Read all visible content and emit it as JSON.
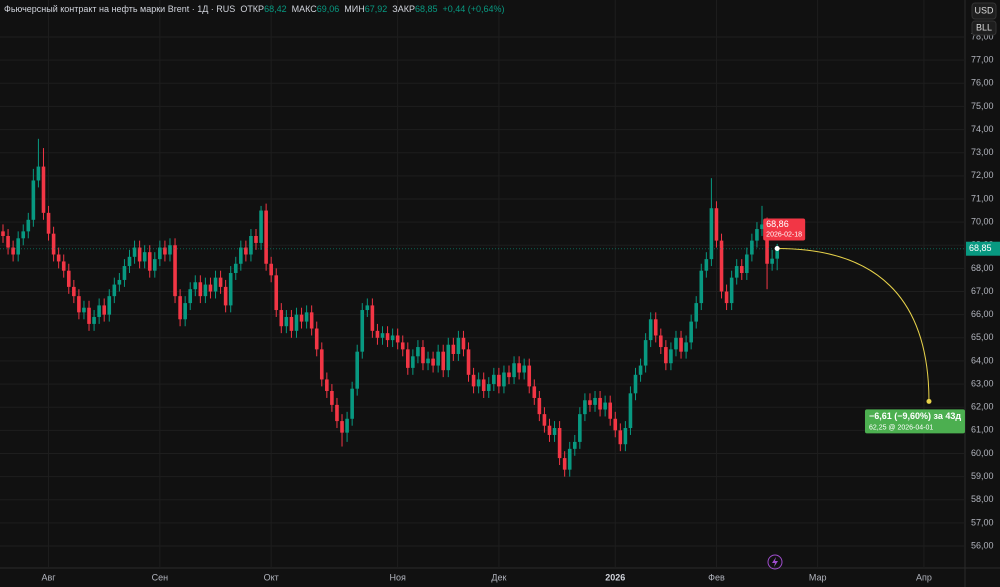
{
  "chart_data": {
    "type": "candlestick",
    "header": {
      "title": "Фьючерсный контракт на нефть марки Brent · 1Д · RUS",
      "stats": [
        {
          "label": "ОТКР",
          "value": "68,42"
        },
        {
          "label": "МАКС",
          "value": "69,06"
        },
        {
          "label": "МИН",
          "value": "67,92"
        },
        {
          "label": "ЗАКР",
          "value": "68,85"
        }
      ],
      "change": "+0,44 (+0,64%)"
    },
    "currency": "USD",
    "unit": "BLL",
    "up_color": "#089981",
    "down_color": "#f23645",
    "grid": true,
    "ylim": [
      55.05,
      79.6
    ],
    "yticks": [
      {
        "value": 56,
        "label": "56,00"
      },
      {
        "value": 57,
        "label": "57,00"
      },
      {
        "value": 58,
        "label": "58,00"
      },
      {
        "value": 59,
        "label": "59,00"
      },
      {
        "value": 60,
        "label": "60,00"
      },
      {
        "value": 61,
        "label": "61,00"
      },
      {
        "value": 62,
        "label": "62,00"
      },
      {
        "value": 63,
        "label": "63,00"
      },
      {
        "value": 64,
        "label": "64,00"
      },
      {
        "value": 65,
        "label": "65,00"
      },
      {
        "value": 66,
        "label": "66,00"
      },
      {
        "value": 67,
        "label": "67,00"
      },
      {
        "value": 68,
        "label": "68,00"
      },
      {
        "value": 69,
        "label": "69,00"
      },
      {
        "value": 70,
        "label": "70,00"
      },
      {
        "value": 71,
        "label": "71,00"
      },
      {
        "value": 72,
        "label": "72,00"
      },
      {
        "value": 73,
        "label": "73,00"
      },
      {
        "value": 74,
        "label": "74,00"
      },
      {
        "value": 75,
        "label": "75,00"
      },
      {
        "value": 76,
        "label": "76,00"
      },
      {
        "value": 77,
        "label": "77,00"
      },
      {
        "value": 78,
        "label": "78,00"
      }
    ],
    "categories": [
      null,
      null,
      null,
      null,
      null,
      null,
      null,
      null,
      null,
      "Авг",
      null,
      null,
      null,
      null,
      null,
      null,
      null,
      null,
      null,
      null,
      null,
      null,
      null,
      null,
      null,
      null,
      null,
      null,
      null,
      null,
      null,
      "Сен",
      null,
      null,
      null,
      null,
      null,
      null,
      null,
      null,
      null,
      null,
      null,
      null,
      null,
      null,
      null,
      null,
      null,
      null,
      null,
      null,
      null,
      "Окт",
      null,
      null,
      null,
      null,
      null,
      null,
      null,
      null,
      null,
      null,
      null,
      null,
      null,
      null,
      null,
      null,
      null,
      null,
      null,
      null,
      null,
      null,
      null,
      null,
      "Ноя",
      null,
      null,
      null,
      null,
      null,
      null,
      null,
      null,
      null,
      null,
      null,
      null,
      null,
      null,
      null,
      null,
      null,
      null,
      null,
      "Дек",
      null,
      null,
      null,
      null,
      null,
      null,
      null,
      null,
      null,
      null,
      null,
      null,
      null,
      null,
      null,
      null,
      null,
      null,
      null,
      null,
      null,
      null,
      "2026",
      null,
      null,
      null,
      null,
      null,
      null,
      null,
      null,
      null,
      null,
      null,
      null,
      null,
      null,
      null,
      null,
      null,
      null,
      null,
      "Фев",
      null,
      null,
      null,
      null,
      null,
      null,
      null,
      null,
      null,
      null,
      null,
      null,
      null,
      null,
      null,
      null,
      null,
      null,
      null,
      "Мар",
      null,
      null,
      null,
      null,
      null,
      null,
      null,
      null,
      null,
      null,
      null,
      null,
      null,
      null,
      null,
      null,
      null,
      null,
      null,
      null,
      "Апр",
      null,
      null,
      null,
      null,
      null,
      null,
      null,
      null
    ],
    "open": [
      69.6,
      69.4,
      68.9,
      68.6,
      69.3,
      69.6,
      70.1,
      71.8,
      72.4,
      70.4,
      69.5,
      68.6,
      68.3,
      67.9,
      67.2,
      66.8,
      66.1,
      66.3,
      65.6,
      65.9,
      66.4,
      66.0,
      66.8,
      67.3,
      67.5,
      68.1,
      68.5,
      68.9,
      68.3,
      68.7,
      67.9,
      68.4,
      68.9,
      68.6,
      69.0,
      66.8,
      65.8,
      66.5,
      67.1,
      67.4,
      66.8,
      67.3,
      67.0,
      67.6,
      67.2,
      66.4,
      67.8,
      68.2,
      68.9,
      68.6,
      69.4,
      69.1,
      70.5,
      68.2,
      67.7,
      66.2,
      65.5,
      65.9,
      65.3,
      66.0,
      65.7,
      66.1,
      65.4,
      64.5,
      63.2,
      62.7,
      62.1,
      61.4,
      60.9,
      61.5,
      62.8,
      64.4,
      66.2,
      66.4,
      65.3,
      65.0,
      65.2,
      64.9,
      65.1,
      64.8,
      64.5,
      63.7,
      64.2,
      64.6,
      63.9,
      64.1,
      63.8,
      64.4,
      63.6,
      64.7,
      64.3,
      65.0,
      64.5,
      63.4,
      62.9,
      63.2,
      62.7,
      63.0,
      63.4,
      62.9,
      63.5,
      63.3,
      63.9,
      63.5,
      63.8,
      62.9,
      62.4,
      61.7,
      61.2,
      60.8,
      61.1,
      59.8,
      59.3,
      60.2,
      60.5,
      61.7,
      62.3,
      62.1,
      62.4,
      61.9,
      62.2,
      61.5,
      61.0,
      60.4,
      61.1,
      62.6,
      63.4,
      63.8,
      64.9,
      65.8,
      65.1,
      64.6,
      63.9,
      64.5,
      65.0,
      64.4,
      64.8,
      65.7,
      66.5,
      67.9,
      68.4,
      70.6,
      69.2,
      67.0,
      66.5,
      67.6,
      68.1,
      67.8,
      68.6,
      69.2,
      69.7,
      69.9,
      68.2,
      68.42,
      null,
      null,
      null,
      null,
      null,
      null,
      null,
      null,
      null,
      null,
      null,
      null,
      null,
      null,
      null,
      null,
      null,
      null,
      null,
      null,
      null,
      null,
      null,
      null,
      null,
      null,
      null,
      null,
      null,
      null,
      null,
      null,
      null,
      null,
      null,
      null,
      null
    ],
    "high": [
      69.9,
      69.7,
      69.2,
      69.6,
      69.9,
      70.4,
      72.3,
      73.6,
      73.2,
      70.7,
      69.8,
      68.9,
      68.6,
      68.2,
      67.5,
      67.1,
      66.6,
      66.6,
      66.2,
      66.7,
      66.7,
      67.1,
      67.6,
      67.8,
      68.4,
      68.8,
      69.2,
      69.2,
      69.0,
      69.0,
      68.7,
      69.2,
      69.2,
      69.3,
      69.3,
      67.1,
      66.8,
      67.4,
      67.7,
      67.7,
      67.6,
      67.6,
      67.9,
      67.9,
      67.5,
      68.1,
      68.5,
      69.2,
      69.2,
      69.7,
      69.7,
      70.7,
      70.8,
      68.5,
      68.0,
      66.5,
      66.2,
      66.2,
      66.3,
      66.3,
      66.4,
      66.4,
      65.7,
      64.8,
      63.5,
      63.0,
      62.4,
      61.7,
      61.8,
      63.1,
      64.7,
      66.5,
      66.7,
      66.7,
      65.6,
      65.5,
      65.5,
      65.4,
      65.4,
      65.1,
      64.8,
      64.5,
      64.9,
      64.9,
      64.4,
      64.4,
      64.7,
      64.7,
      65.0,
      65.0,
      65.3,
      65.3,
      64.8,
      63.7,
      63.5,
      63.5,
      63.3,
      63.7,
      63.7,
      63.8,
      63.8,
      64.2,
      64.2,
      64.1,
      64.1,
      63.2,
      62.7,
      62.0,
      61.5,
      61.4,
      61.4,
      60.1,
      60.5,
      60.8,
      62.0,
      62.6,
      62.6,
      62.7,
      62.7,
      62.5,
      62.5,
      61.8,
      61.3,
      61.4,
      62.9,
      63.7,
      64.1,
      65.2,
      66.1,
      66.1,
      65.4,
      64.9,
      64.8,
      65.3,
      65.3,
      65.1,
      66.0,
      66.8,
      68.2,
      68.7,
      71.9,
      70.9,
      69.5,
      67.3,
      67.9,
      68.4,
      68.4,
      68.9,
      69.5,
      70.0,
      70.7,
      70.2,
      68.8,
      69.06,
      null,
      null,
      null,
      null,
      null,
      null,
      null,
      null,
      null,
      null,
      null,
      null,
      null,
      null,
      null,
      null,
      null,
      null,
      null,
      null,
      null,
      null,
      null,
      null,
      null,
      null,
      null,
      null,
      null,
      null,
      null,
      null,
      null,
      null,
      null,
      null,
      null
    ],
    "low": [
      69.1,
      68.6,
      68.3,
      68.3,
      69.0,
      69.3,
      69.8,
      71.5,
      70.1,
      69.2,
      68.3,
      68.0,
      67.6,
      66.9,
      66.5,
      65.8,
      65.8,
      65.3,
      65.3,
      65.6,
      65.7,
      65.7,
      66.5,
      67.0,
      67.2,
      67.8,
      68.2,
      68.0,
      68.0,
      67.6,
      67.6,
      68.1,
      68.3,
      68.3,
      66.5,
      65.5,
      65.5,
      66.2,
      66.8,
      66.5,
      66.5,
      66.7,
      66.7,
      66.9,
      66.1,
      66.1,
      67.5,
      67.9,
      68.3,
      68.3,
      68.8,
      68.8,
      67.9,
      67.4,
      65.9,
      65.2,
      65.2,
      65.0,
      65.0,
      65.4,
      65.4,
      65.1,
      64.2,
      62.9,
      62.4,
      61.8,
      61.1,
      60.3,
      60.5,
      61.2,
      62.5,
      64.1,
      65.9,
      65.0,
      64.7,
      64.7,
      64.6,
      64.6,
      64.5,
      64.2,
      63.4,
      63.4,
      63.9,
      63.6,
      63.6,
      63.5,
      63.5,
      63.3,
      63.3,
      64.0,
      64.0,
      64.2,
      63.1,
      62.6,
      62.6,
      62.4,
      62.4,
      62.7,
      62.6,
      62.6,
      63.0,
      63.0,
      63.2,
      63.2,
      62.6,
      62.1,
      61.4,
      60.9,
      60.5,
      60.5,
      59.5,
      59.0,
      59.0,
      59.9,
      60.2,
      61.4,
      61.8,
      61.8,
      61.6,
      61.6,
      61.2,
      60.7,
      60.1,
      60.1,
      60.8,
      62.3,
      63.1,
      63.5,
      64.6,
      64.8,
      64.3,
      63.6,
      63.6,
      64.2,
      64.1,
      64.1,
      64.5,
      65.4,
      66.2,
      67.6,
      68.1,
      68.9,
      66.7,
      66.2,
      66.2,
      67.3,
      67.5,
      67.5,
      68.3,
      68.9,
      69.4,
      67.1,
      67.9,
      67.92,
      null,
      null,
      null,
      null,
      null,
      null,
      null,
      null,
      null,
      null,
      null,
      null,
      null,
      null,
      null,
      null,
      null,
      null,
      null,
      null,
      null,
      null,
      null,
      null,
      null,
      null,
      null,
      null,
      null,
      null,
      null,
      null,
      null,
      null,
      null,
      null,
      null
    ],
    "close": [
      69.4,
      68.9,
      68.6,
      69.3,
      69.6,
      70.1,
      71.8,
      72.4,
      70.4,
      69.5,
      68.6,
      68.3,
      67.9,
      67.2,
      66.8,
      66.1,
      66.3,
      65.6,
      65.9,
      66.4,
      66.0,
      66.8,
      67.3,
      67.5,
      68.1,
      68.5,
      68.9,
      68.3,
      68.7,
      67.9,
      68.4,
      68.9,
      68.6,
      69.0,
      66.8,
      65.8,
      66.5,
      67.1,
      67.4,
      66.8,
      67.3,
      67.0,
      67.6,
      67.2,
      66.4,
      67.8,
      68.2,
      68.9,
      68.6,
      69.4,
      69.1,
      70.5,
      68.2,
      67.7,
      66.2,
      65.5,
      65.9,
      65.3,
      66.0,
      65.7,
      66.1,
      65.4,
      64.5,
      63.2,
      62.7,
      62.1,
      61.4,
      60.9,
      61.5,
      62.8,
      64.4,
      66.2,
      66.4,
      65.3,
      65.0,
      65.2,
      64.9,
      65.1,
      64.8,
      64.5,
      63.7,
      64.2,
      64.6,
      63.9,
      64.1,
      63.8,
      64.4,
      63.6,
      64.7,
      64.3,
      65.0,
      64.5,
      63.4,
      62.9,
      63.2,
      62.7,
      63.0,
      63.4,
      62.9,
      63.5,
      63.3,
      63.9,
      63.5,
      63.8,
      62.9,
      62.4,
      61.7,
      61.2,
      60.8,
      61.1,
      59.8,
      59.3,
      60.2,
      60.5,
      61.7,
      62.3,
      62.1,
      62.4,
      61.9,
      62.2,
      61.5,
      61.0,
      60.4,
      61.1,
      62.6,
      63.4,
      63.8,
      64.9,
      65.8,
      65.1,
      64.6,
      63.9,
      64.5,
      65.0,
      64.4,
      64.8,
      65.7,
      66.5,
      67.9,
      68.4,
      70.6,
      69.2,
      67.0,
      66.5,
      67.6,
      68.1,
      67.8,
      68.6,
      69.2,
      69.7,
      69.9,
      68.2,
      68.42,
      68.85,
      null,
      null,
      null,
      null,
      null,
      null,
      null,
      null,
      null,
      null,
      null,
      null,
      null,
      null,
      null,
      null,
      null,
      null,
      null,
      null,
      null,
      null,
      null,
      null,
      null,
      null,
      null,
      null,
      null,
      null,
      null,
      null,
      null,
      null,
      null,
      null,
      null
    ],
    "last_price": {
      "value": 68.85,
      "label": "68,85"
    },
    "forecast": {
      "color": "#e7d24a",
      "from": {
        "value": 68.86,
        "label": "68,86",
        "date": "2026-02-18"
      },
      "to": {
        "value": 62.25,
        "label": "62,25 @ 2026-04-01"
      },
      "change": "−6,61 (−9,60%) за 43д"
    }
  }
}
